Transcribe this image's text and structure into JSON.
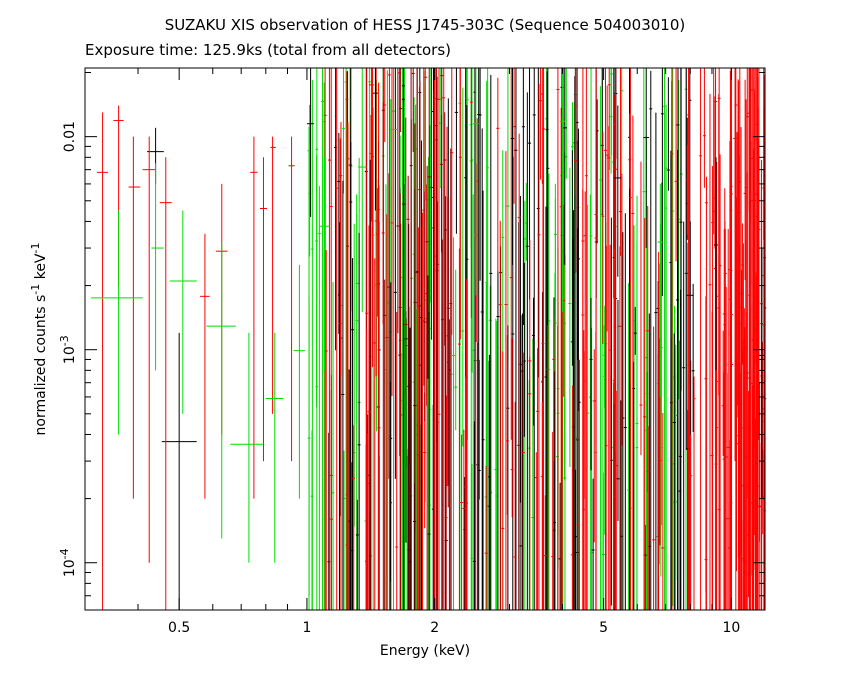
{
  "title": "SUZAKU XIS observation of HESS J1745-303C (Sequence 504003010)",
  "subtitle": "Exposure time: 125.9ks (total from all detectors)",
  "chart_data": {
    "type": "scatter",
    "style": "error-bar crosses",
    "x_scale": "log",
    "y_scale": "log",
    "xlabel": "Energy (keV)",
    "ylabel_parts": [
      "normalized counts s",
      "-1",
      " keV",
      "-1"
    ],
    "xlim": [
      0.3,
      12.0
    ],
    "ylim": [
      6e-05,
      0.021
    ],
    "grid": false,
    "x_ticks": [
      {
        "value": 0.5,
        "label": "0.5"
      },
      {
        "value": 1,
        "label": "1"
      },
      {
        "value": 2,
        "label": "2"
      },
      {
        "value": 5,
        "label": "5"
      },
      {
        "value": 10,
        "label": "10"
      }
    ],
    "x_minor_ticks": [
      0.3,
      0.4,
      0.6,
      0.7,
      0.8,
      0.9,
      3,
      4,
      6,
      7,
      8,
      9
    ],
    "y_ticks": [
      {
        "value": 0.0001,
        "base": "10",
        "exp": "-4"
      },
      {
        "value": 0.001,
        "base": "10",
        "exp": "-3"
      },
      {
        "value": 0.01,
        "label": "0.01"
      }
    ],
    "y_minor_ticks": [
      7e-05,
      8e-05,
      9e-05,
      0.0002,
      0.0003,
      0.0004,
      0.0005,
      0.0006,
      0.0007,
      0.0008,
      0.0009,
      0.002,
      0.003,
      0.004,
      0.005,
      0.006,
      0.007,
      0.008,
      0.009,
      0.02
    ],
    "colors": [
      "#000000",
      "#ff0000",
      "#00dd00"
    ],
    "series": [
      {
        "color": "#000000",
        "points": [
          {
            "x": 0.44,
            "xlo": 0.42,
            "xhi": 0.46,
            "y": 0.0085,
            "ylo": 0.006,
            "yhi": 0.011
          },
          {
            "x": 0.5,
            "xlo": 0.455,
            "xhi": 0.55,
            "y": 0.00037,
            "ylo": 6e-05,
            "yhi": 0.0012
          },
          {
            "x": 1.02,
            "xlo": 1.0,
            "xhi": 1.04,
            "y": 0.0115,
            "ylo": 0.0042,
            "yhi": 0.021
          },
          {
            "x": 1.45,
            "xlo": 1.43,
            "xhi": 1.47,
            "y": 0.016,
            "ylo": 0.0045,
            "yhi": 0.021
          },
          {
            "x": 2.25,
            "xlo": 2.23,
            "xhi": 2.27,
            "y": 0.013,
            "ylo": 0.0035,
            "yhi": 0.021
          },
          {
            "x": 3.05,
            "xlo": 3.02,
            "xhi": 3.08,
            "y": 0.0098,
            "ylo": 0.0025,
            "yhi": 0.021
          },
          {
            "x": 4.05,
            "xlo": 4.0,
            "xhi": 4.1,
            "y": 0.011,
            "ylo": 0.0025,
            "yhi": 0.021
          },
          {
            "x": 5.4,
            "xlo": 5.3,
            "xhi": 5.5,
            "y": 0.0064,
            "ylo": 0.0022,
            "yhi": 0.014
          },
          {
            "x": 6.3,
            "xlo": 6.2,
            "xhi": 6.4,
            "y": 0.0099,
            "ylo": 0.003,
            "yhi": 0.021
          },
          {
            "x": 8.0,
            "xlo": 7.85,
            "xhi": 8.15,
            "y": 0.0018,
            "ylo": 0.0004,
            "yhi": 0.004
          },
          {
            "x": 9.2,
            "xlo": 9.1,
            "xhi": 9.3,
            "y": 0.0031,
            "ylo": 0.0008,
            "yhi": 0.008
          },
          {
            "x": 11.8,
            "xlo": 11.6,
            "xhi": 12.0,
            "y": 0.00094,
            "ylo": 0.0002,
            "yhi": 0.003
          }
        ]
      },
      {
        "color": "#ff0000",
        "points": [
          {
            "x": 0.33,
            "xlo": 0.32,
            "xhi": 0.34,
            "y": 0.0068,
            "ylo": 6e-05,
            "yhi": 0.013
          },
          {
            "x": 0.36,
            "xlo": 0.35,
            "xhi": 0.37,
            "y": 0.0119,
            "ylo": 0.002,
            "yhi": 0.014
          },
          {
            "x": 0.39,
            "xlo": 0.38,
            "xhi": 0.405,
            "y": 0.0058,
            "ylo": 0.0002,
            "yhi": 0.01
          },
          {
            "x": 0.425,
            "xlo": 0.41,
            "xhi": 0.44,
            "y": 0.007,
            "ylo": 0.0001,
            "yhi": 0.01
          },
          {
            "x": 0.465,
            "xlo": 0.45,
            "xhi": 0.48,
            "y": 0.0049,
            "ylo": 6e-05,
            "yhi": 0.008
          },
          {
            "x": 0.575,
            "xlo": 0.56,
            "xhi": 0.59,
            "y": 0.00178,
            "ylo": 0.0002,
            "yhi": 0.0035
          },
          {
            "x": 0.63,
            "xlo": 0.61,
            "xhi": 0.65,
            "y": 0.0029,
            "ylo": 0.0004,
            "yhi": 0.006
          },
          {
            "x": 0.75,
            "xlo": 0.735,
            "xhi": 0.765,
            "y": 0.0068,
            "ylo": 0.0002,
            "yhi": 0.01
          },
          {
            "x": 0.79,
            "xlo": 0.775,
            "xhi": 0.805,
            "y": 0.0046,
            "ylo": 0.0003,
            "yhi": 0.008
          },
          {
            "x": 0.83,
            "xlo": 0.82,
            "xhi": 0.845,
            "y": 0.0089,
            "ylo": 0.0005,
            "yhi": 0.01
          },
          {
            "x": 0.92,
            "xlo": 0.905,
            "xhi": 0.935,
            "y": 0.0073,
            "ylo": 0.0003,
            "yhi": 0.01
          },
          {
            "x": 1.42,
            "xlo": 1.4,
            "xhi": 1.44,
            "y": 0.0175,
            "ylo": 0.004,
            "yhi": 0.021
          },
          {
            "x": 1.9,
            "xlo": 1.88,
            "xhi": 1.92,
            "y": 0.019,
            "ylo": 0.005,
            "yhi": 0.021
          },
          {
            "x": 10.2,
            "xlo": 10.1,
            "xhi": 10.3,
            "y": 0.0098,
            "ylo": 0.0003,
            "yhi": 0.021
          },
          {
            "x": 10.9,
            "xlo": 10.8,
            "xhi": 11.0,
            "y": 0.0124,
            "ylo": 0.0002,
            "yhi": 0.021
          }
        ]
      },
      {
        "color": "#00dd00",
        "points": [
          {
            "x": 0.36,
            "xlo": 0.31,
            "xhi": 0.41,
            "y": 0.00175,
            "ylo": 0.0004,
            "yhi": 0.0045
          },
          {
            "x": 0.44,
            "xlo": 0.43,
            "xhi": 0.46,
            "y": 0.003,
            "ylo": 0.0008,
            "yhi": 0.0075
          },
          {
            "x": 0.51,
            "xlo": 0.475,
            "xhi": 0.55,
            "y": 0.0021,
            "ylo": 0.0005,
            "yhi": 0.0045
          },
          {
            "x": 0.63,
            "xlo": 0.58,
            "xhi": 0.68,
            "y": 0.00129,
            "ylo": 0.00013,
            "yhi": 0.0032
          },
          {
            "x": 0.73,
            "xlo": 0.66,
            "xhi": 0.79,
            "y": 0.00036,
            "ylo": 0.0001,
            "yhi": 0.0012
          },
          {
            "x": 0.84,
            "xlo": 0.8,
            "xhi": 0.88,
            "y": 0.00059,
            "ylo": 0.0001,
            "yhi": 0.0012
          },
          {
            "x": 0.96,
            "xlo": 0.93,
            "xhi": 0.99,
            "y": 0.00099,
            "ylo": 0.0002,
            "yhi": 0.0025
          },
          {
            "x": 1.1,
            "xlo": 1.07,
            "xhi": 1.13,
            "y": 0.0038,
            "ylo": 0.0008,
            "yhi": 0.008
          },
          {
            "x": 1.35,
            "xlo": 1.32,
            "xhi": 1.38,
            "y": 0.0072,
            "ylo": 0.0015,
            "yhi": 0.021
          },
          {
            "x": 1.6,
            "xlo": 1.57,
            "xhi": 1.63,
            "y": 0.0108,
            "ylo": 0.002,
            "yhi": 0.021
          },
          {
            "x": 2.5,
            "xlo": 2.46,
            "xhi": 2.54,
            "y": 0.0115,
            "ylo": 0.0018,
            "yhi": 0.021
          },
          {
            "x": 4.0,
            "xlo": 3.94,
            "xhi": 4.06,
            "y": 0.0118,
            "ylo": 0.0015,
            "yhi": 0.021
          },
          {
            "x": 6.8,
            "xlo": 6.7,
            "xhi": 6.9,
            "y": 0.0032,
            "ylo": 0.0006,
            "yhi": 0.006
          }
        ]
      }
    ],
    "dense_columns": [
      {
        "color": "#00dd00",
        "x_range": [
          1.0,
          8.0
        ],
        "y_range": [
          0.0001,
          0.02
        ],
        "count": 150
      },
      {
        "color": "#000000",
        "x_range": [
          1.1,
          8.5
        ],
        "y_range": [
          0.0001,
          0.02
        ],
        "count": 130
      },
      {
        "color": "#ff0000",
        "x_range": [
          1.1,
          9.0
        ],
        "y_range": [
          0.0001,
          0.02
        ],
        "count": 140
      },
      {
        "color": "#8b0000",
        "x_range": [
          1.5,
          2.2
        ],
        "y_range": [
          0.0008,
          0.02
        ],
        "count": 30
      },
      {
        "color": "#ff0000",
        "x_range": [
          9.0,
          12.0
        ],
        "y_range": [
          0.0001,
          0.018
        ],
        "count": 110
      }
    ]
  }
}
